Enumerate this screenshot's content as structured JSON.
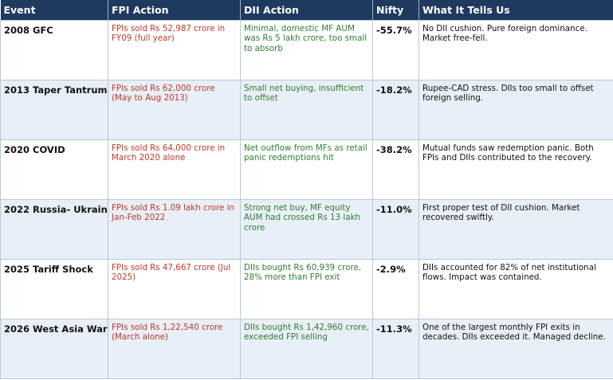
{
  "table": {
    "headers": [
      "Event",
      "FPI Action",
      "DII Action",
      "Nifty",
      "What It Tells Us"
    ],
    "rows": [
      [
        "2008 GFC",
        "FPIs sold Rs 52,987 crore in FY09 (full year)",
        "Minimal, domestic MF AUM was Rs 5 lakh crore, too small to absorb",
        "-55.7%",
        "No DII cushion. Pure foreign dominance. Market free-fell."
      ],
      [
        "2013 Taper Tantrum",
        "FPIs sold Rs 62,000 crore (May to Aug 2013)",
        "Small net buying, insufficient to offset",
        "-18.2%",
        "Rupee-CAD stress. DIIs too small to offset foreign selling."
      ],
      [
        "2020 COVID",
        "FPIs sold Rs 64,000 crore in March 2020 alone",
        "Net outflow from MFs as retail panic redemptions hit",
        "-38.2%",
        "Mutual funds saw redemption panic. Both FPIs and DIIs contributed to the recovery."
      ],
      [
        "2022 Russia- Ukraine",
        "FPIs sold Rs 1.09 lakh crore in Jan-Feb 2022",
        "Strong net buy, MF equity AUM had crossed Rs 13 lakh crore",
        "-11.0%",
        "First proper test of DII cushion. Market recovered swiftly."
      ],
      [
        "2025 Tariff Shock",
        "FPIs sold Rs 47,667 crore (Jul 2025)",
        "DIIs bought Rs 60,939 crore, 28% more than FPI exit",
        "-2.9%",
        "DIIs accounted for 82% of net institutional flows. Impact was contained."
      ],
      [
        "2026 West Asia War",
        "FPIs sold Rs 1,22,540 crore (March alone)",
        "DIIs bought Rs 1,42,960 crore, exceeded FPI selling",
        "-11.3%",
        "One of the largest monthly FPI exits in decades. DIIs exceeded it. Managed decline."
      ]
    ]
  }
}
